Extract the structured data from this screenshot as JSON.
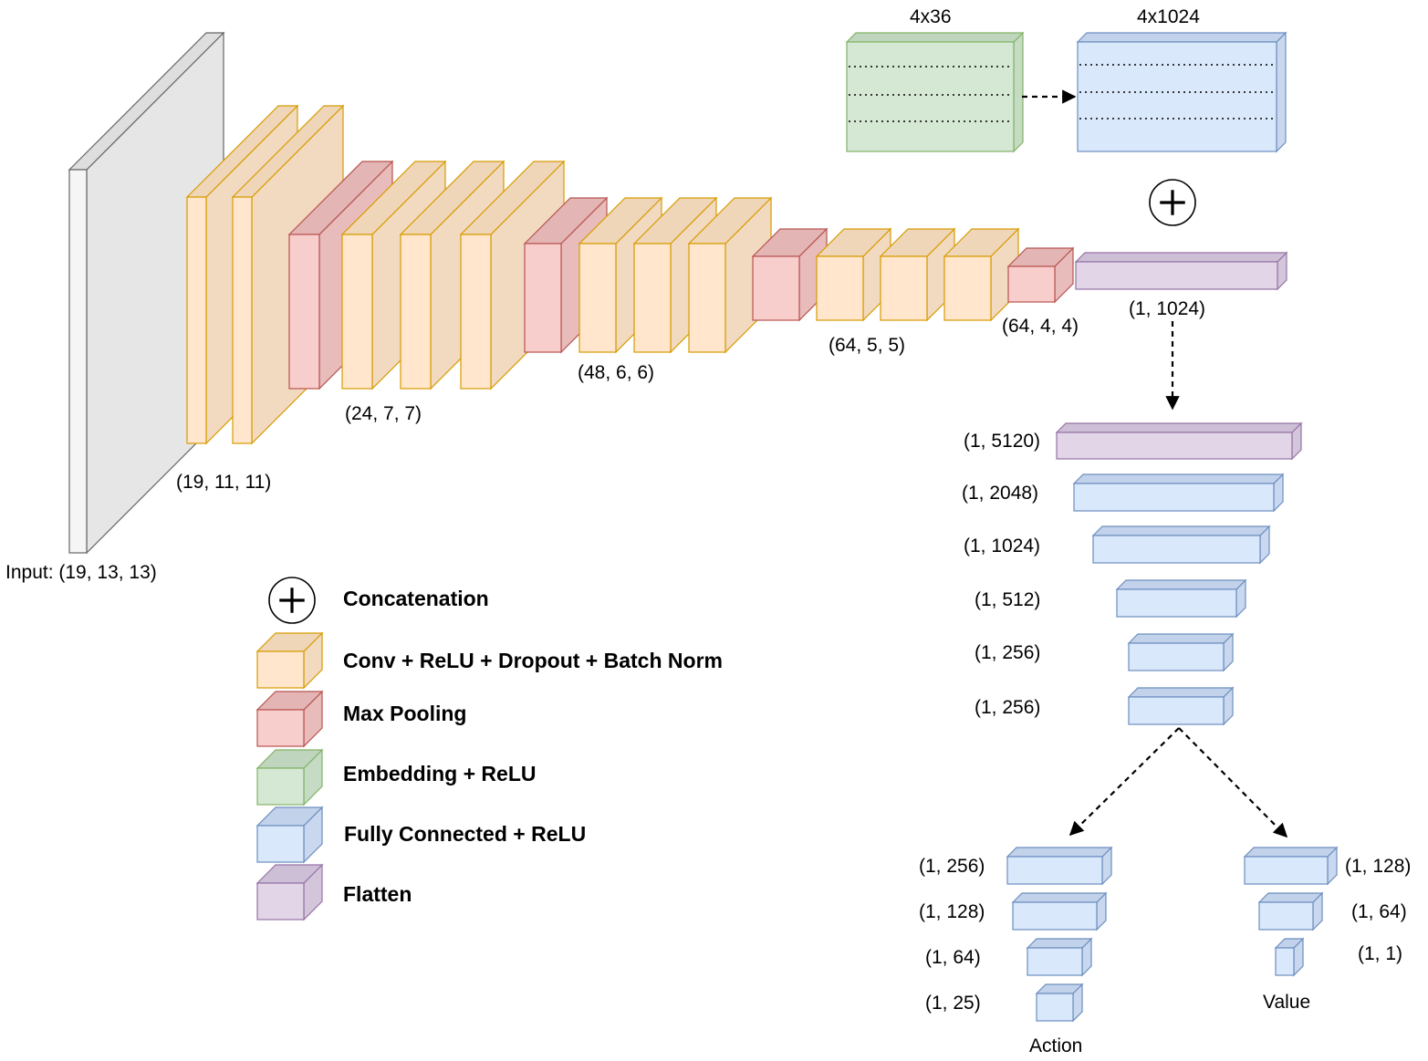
{
  "colors": {
    "conv": {
      "front": "#ffe6cc",
      "side": "#f2dac0",
      "top": "#f0d6b8",
      "stroke": "#d79b00"
    },
    "pool": {
      "front": "#f8cecc",
      "side": "#e8bcbb",
      "top": "#e3b5b4",
      "stroke": "#b85450"
    },
    "embed": {
      "front": "#d5e8d4",
      "side": "#c5dbc3",
      "top": "#bfd5bd",
      "stroke": "#82b366"
    },
    "fc": {
      "front": "#dae8fc",
      "side": "#c9d8ee",
      "top": "#c2d2ea",
      "stroke": "#6c8ebf"
    },
    "flatten": {
      "front": "#e1d5e7",
      "side": "#d3c6da",
      "top": "#cdbfd5",
      "stroke": "#9673a6"
    },
    "input": {
      "front": "#f5f5f5",
      "side": "#e6e6e6",
      "top": "#dedede",
      "stroke": "#666666"
    }
  },
  "labels": {
    "input": "Input: (19, 13, 13)",
    "conv1": "(19, 11, 11)",
    "conv2": "(24, 7, 7)",
    "conv3": "(48, 6, 6)",
    "conv4": "(64, 5, 5)",
    "pool4": "(64, 4, 4)",
    "flat1": "(1, 1024)",
    "embed": "4x36",
    "embed_fc": "4x1024",
    "fc_5120": "(1, 5120)",
    "fc_2048": "(1, 2048)",
    "fc_1024": "(1, 1024)",
    "fc_512": "(1, 512)",
    "fc_256a": "(1, 256)",
    "fc_256b": "(1, 256)",
    "act_256": "(1, 256)",
    "act_128": "(1, 128)",
    "act_64": "(1, 64)",
    "act_25": "(1, 25)",
    "action": "Action",
    "val_128": "(1, 128)",
    "val_64": "(1, 64)",
    "val_1": "(1, 1)",
    "value": "Value"
  },
  "legend": {
    "concat": "Concatenation",
    "conv": "Conv + ReLU + Dropout + Batch Norm",
    "pool": "Max Pooling",
    "embed": "Embedding + ReLU",
    "fc": "Fully Connected + ReLU",
    "flatten": "Flatten"
  },
  "icons": {
    "concat": "plus-circle-icon"
  }
}
